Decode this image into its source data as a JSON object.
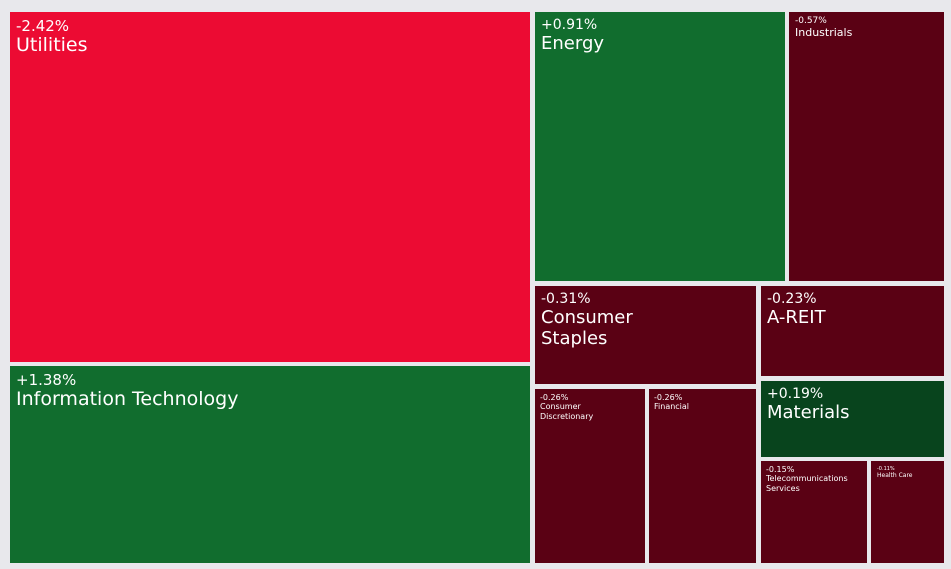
{
  "chart_data": {
    "type": "treemap",
    "colors": {
      "strong_negative": "#ec0b33",
      "negative": "#5a0114",
      "positive": "#116d2e",
      "mild_positive": "#08441d"
    },
    "items": [
      {
        "name": "Utilities",
        "change": "-2.42%",
        "value": -2.42,
        "color": "#ec0b33"
      },
      {
        "name": "Information Technology",
        "change": "+1.38%",
        "value": 1.38,
        "color": "#116d2e"
      },
      {
        "name": "Energy",
        "change": "+0.91%",
        "value": 0.91,
        "color": "#116d2e"
      },
      {
        "name": "Industrials",
        "change": "-0.57%",
        "value": -0.57,
        "color": "#5a0114"
      },
      {
        "name": "Consumer\nStaples",
        "change": "-0.31%",
        "value": -0.31,
        "color": "#5a0114"
      },
      {
        "name": "A-REIT",
        "change": "-0.23%",
        "value": -0.23,
        "color": "#5a0114"
      },
      {
        "name": "Materials",
        "change": "+0.19%",
        "value": 0.19,
        "color": "#08441d"
      },
      {
        "name": "Consumer\nDiscretionary",
        "change": "-0.26%",
        "value": -0.26,
        "color": "#5a0114"
      },
      {
        "name": "Financial",
        "change": "-0.26%",
        "value": -0.26,
        "color": "#5a0114"
      },
      {
        "name": "Telecommunications\nServices",
        "change": "-0.15%",
        "value": -0.15,
        "color": "#5a0114"
      },
      {
        "name": "Health Care",
        "change": "-0.11%",
        "value": -0.11,
        "color": "#5a0114"
      }
    ]
  }
}
